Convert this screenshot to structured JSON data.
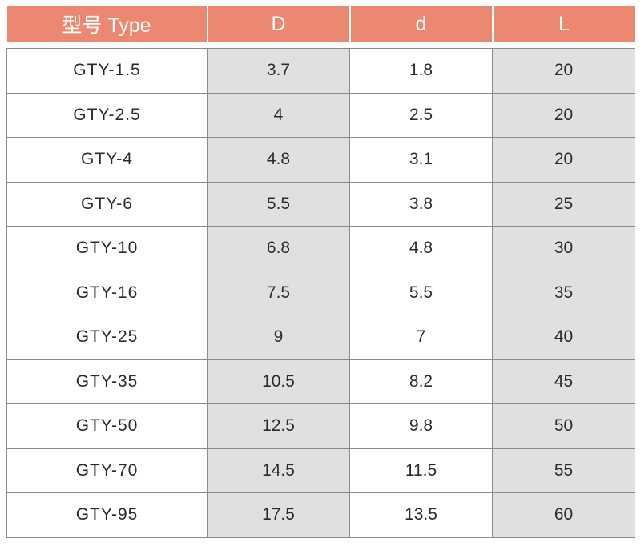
{
  "colors": {
    "header_bg": "#ec8872",
    "header_text": "#ffffff",
    "shaded_column": "#e0e0e0",
    "grid_line": "#8a8a8a"
  },
  "table": {
    "headers": [
      "型号 Type",
      "D",
      "d",
      "L"
    ],
    "rows": [
      [
        "GTY-1.5",
        "3.7",
        "1.8",
        "20"
      ],
      [
        "GTY-2.5",
        "4",
        "2.5",
        "20"
      ],
      [
        "GTY-4",
        "4.8",
        "3.1",
        "20"
      ],
      [
        "GTY-6",
        "5.5",
        "3.8",
        "25"
      ],
      [
        "GTY-10",
        "6.8",
        "4.8",
        "30"
      ],
      [
        "GTY-16",
        "7.5",
        "5.5",
        "35"
      ],
      [
        "GTY-25",
        "9",
        "7",
        "40"
      ],
      [
        "GTY-35",
        "10.5",
        "8.2",
        "45"
      ],
      [
        "GTY-50",
        "12.5",
        "9.8",
        "50"
      ],
      [
        "GTY-70",
        "14.5",
        "11.5",
        "55"
      ],
      [
        "GTY-95",
        "17.5",
        "13.5",
        "60"
      ]
    ]
  }
}
